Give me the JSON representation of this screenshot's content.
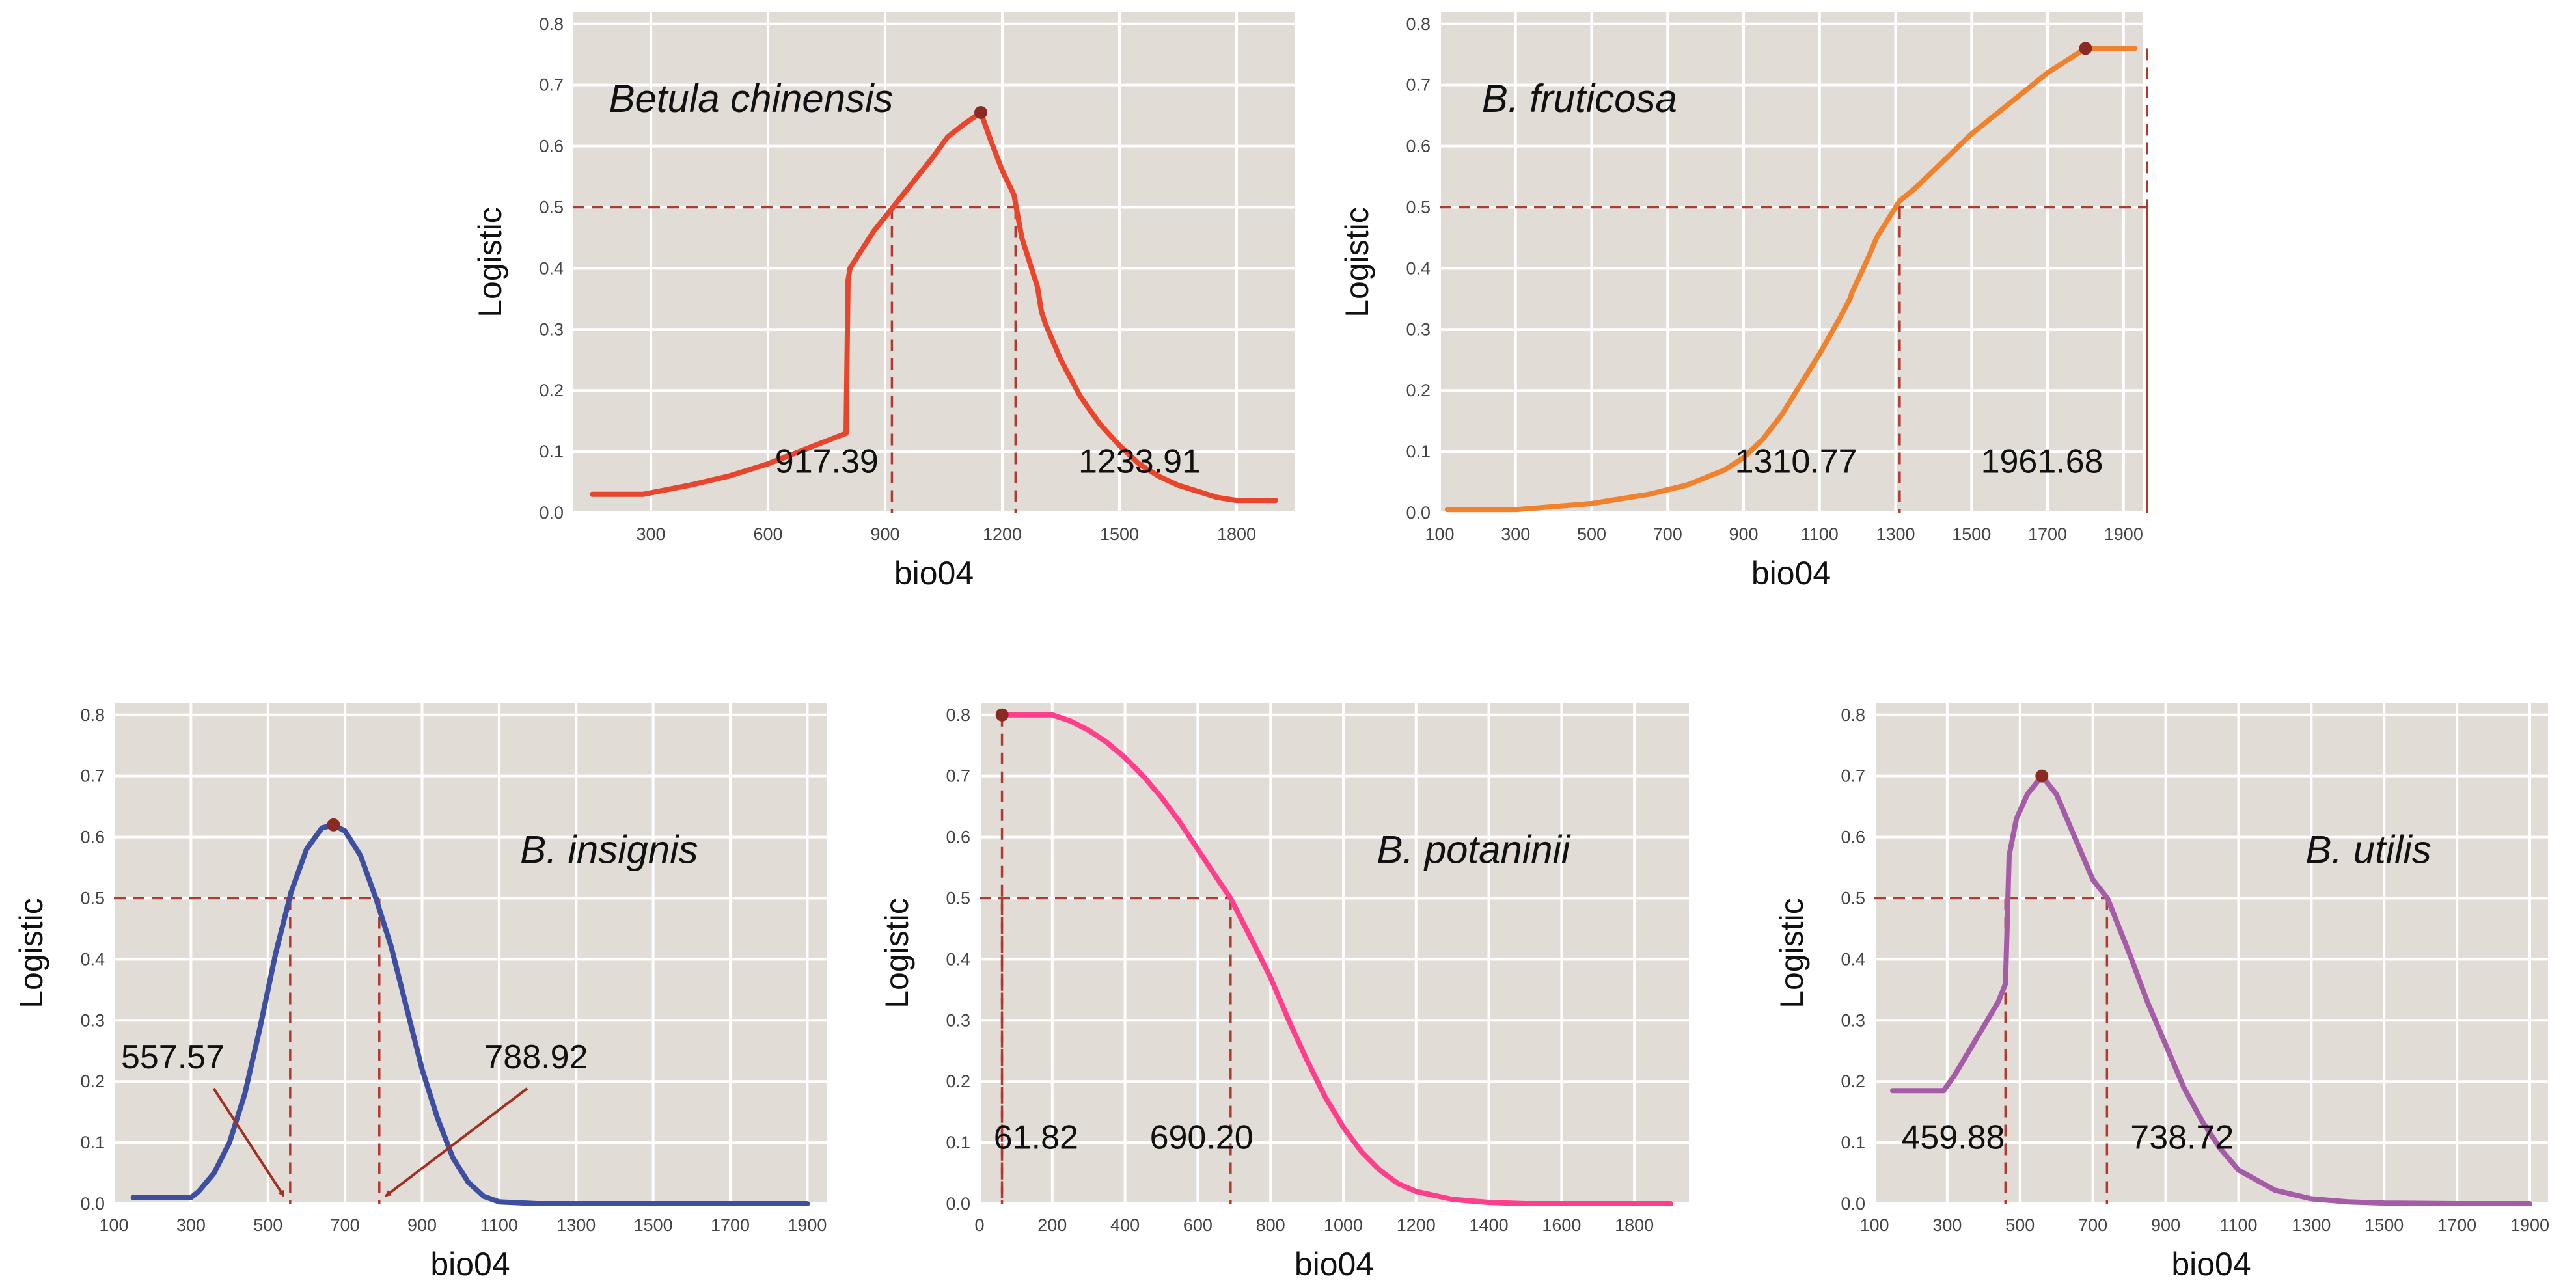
{
  "chart_data": [
    {
      "type": "line",
      "title": "Betula chinensis",
      "xlabel": "bio04",
      "ylabel": "Logistic",
      "color": "#e8452c",
      "xlim": [
        100,
        1950
      ],
      "ylim": [
        0,
        0.82
      ],
      "xticks": [
        300,
        600,
        900,
        1200,
        1500,
        1800
      ],
      "yticks": [
        0.0,
        0.1,
        0.2,
        0.3,
        0.4,
        0.5,
        0.6,
        0.7,
        0.8
      ],
      "threshold": 0.5,
      "x": [
        150,
        280,
        400,
        500,
        600,
        700,
        760,
        800,
        805,
        810,
        830,
        870,
        920,
        970,
        1020,
        1060,
        1100,
        1145,
        1170,
        1200,
        1230,
        1250,
        1270,
        1290,
        1300,
        1310,
        1350,
        1400,
        1450,
        1500,
        1550,
        1600,
        1650,
        1700,
        1750,
        1800,
        1850,
        1900
      ],
      "y": [
        0.03,
        0.03,
        0.045,
        0.06,
        0.08,
        0.105,
        0.12,
        0.13,
        0.38,
        0.4,
        0.42,
        0.46,
        0.5,
        0.54,
        0.58,
        0.615,
        0.635,
        0.655,
        0.61,
        0.56,
        0.52,
        0.45,
        0.41,
        0.37,
        0.33,
        0.31,
        0.25,
        0.19,
        0.145,
        0.11,
        0.08,
        0.06,
        0.045,
        0.035,
        0.025,
        0.02,
        0.02,
        0.02
      ],
      "peak": {
        "x": 1145,
        "y": 0.655
      },
      "cutoffs": [
        917.39,
        1233.91
      ],
      "annotations": [
        "917.39",
        "1233.91"
      ]
    },
    {
      "type": "line",
      "title": "B. fruticosa",
      "xlabel": "bio04",
      "ylabel": "Logistic",
      "color": "#f0822d",
      "xlim": [
        100,
        1950
      ],
      "ylim": [
        0,
        0.82
      ],
      "xticks": [
        100,
        300,
        500,
        700,
        900,
        1100,
        1300,
        1500,
        1700,
        1900
      ],
      "yticks": [
        0.0,
        0.1,
        0.2,
        0.3,
        0.4,
        0.5,
        0.6,
        0.7,
        0.8
      ],
      "threshold": 0.5,
      "x": [
        120,
        300,
        500,
        650,
        750,
        850,
        900,
        950,
        1000,
        1050,
        1100,
        1150,
        1180,
        1185,
        1200,
        1230,
        1250,
        1280,
        1310,
        1350,
        1400,
        1500,
        1600,
        1700,
        1800,
        1850,
        1900,
        1930
      ],
      "y": [
        0.005,
        0.005,
        0.015,
        0.03,
        0.045,
        0.07,
        0.09,
        0.12,
        0.16,
        0.21,
        0.26,
        0.315,
        0.35,
        0.36,
        0.38,
        0.42,
        0.45,
        0.48,
        0.51,
        0.53,
        0.56,
        0.62,
        0.67,
        0.72,
        0.76,
        0.76,
        0.76,
        0.76
      ],
      "peak": {
        "x": 1800,
        "y": 0.76
      },
      "cutoffs": [
        1310.77,
        1961.68
      ],
      "annotations": [
        "1310.77",
        "1961.68"
      ]
    },
    {
      "type": "line",
      "title": "B. insignis",
      "xlabel": "bio04",
      "ylabel": "Logistic",
      "color": "#3f4fa0",
      "xlim": [
        100,
        1950
      ],
      "ylim": [
        0,
        0.82
      ],
      "xticks": [
        100,
        300,
        500,
        700,
        900,
        1100,
        1300,
        1500,
        1700,
        1900
      ],
      "yticks": [
        0.0,
        0.1,
        0.2,
        0.3,
        0.4,
        0.5,
        0.6,
        0.7,
        0.8
      ],
      "threshold": 0.5,
      "x": [
        150,
        300,
        320,
        360,
        400,
        440,
        480,
        520,
        560,
        600,
        640,
        670,
        700,
        740,
        780,
        820,
        860,
        900,
        940,
        980,
        1020,
        1060,
        1100,
        1200,
        1400,
        1600,
        1800,
        1900
      ],
      "y": [
        0.01,
        0.01,
        0.02,
        0.05,
        0.1,
        0.18,
        0.29,
        0.41,
        0.51,
        0.58,
        0.615,
        0.62,
        0.61,
        0.57,
        0.5,
        0.42,
        0.32,
        0.22,
        0.14,
        0.075,
        0.035,
        0.012,
        0.003,
        0.0,
        0.0,
        0.0,
        0.0,
        0.0
      ],
      "peak": {
        "x": 670,
        "y": 0.62
      },
      "cutoffs": [
        557.57,
        788.92
      ],
      "annotations": [
        "557.57",
        "788.92"
      ]
    },
    {
      "type": "line",
      "title": "B. potaninii",
      "xlabel": "bio04",
      "ylabel": "Logistic",
      "color": "#ff3e8c",
      "xlim": [
        0,
        1950
      ],
      "ylim": [
        0,
        0.82
      ],
      "xticks": [
        0,
        200,
        400,
        600,
        800,
        1000,
        1200,
        1400,
        1600,
        1800
      ],
      "yticks": [
        0.0,
        0.1,
        0.2,
        0.3,
        0.4,
        0.5,
        0.6,
        0.7,
        0.8
      ],
      "threshold": 0.5,
      "x": [
        62,
        200,
        250,
        300,
        350,
        400,
        450,
        500,
        550,
        600,
        650,
        690,
        750,
        800,
        850,
        900,
        950,
        1000,
        1050,
        1100,
        1150,
        1200,
        1300,
        1400,
        1500,
        1600,
        1700,
        1800,
        1900
      ],
      "y": [
        0.8,
        0.8,
        0.79,
        0.775,
        0.755,
        0.73,
        0.7,
        0.665,
        0.625,
        0.58,
        0.535,
        0.5,
        0.43,
        0.37,
        0.3,
        0.235,
        0.175,
        0.125,
        0.085,
        0.055,
        0.033,
        0.02,
        0.007,
        0.002,
        0.0,
        0.0,
        0.0,
        0.0,
        0.0
      ],
      "peak": {
        "x": 62,
        "y": 0.8
      },
      "cutoffs": [
        61.82,
        690.2
      ],
      "annotations": [
        "61.82",
        "690.20"
      ]
    },
    {
      "type": "line",
      "title": "B. utilis",
      "xlabel": "bio04",
      "ylabel": "Logistic",
      "color": "#a45ca6",
      "xlim": [
        100,
        1950
      ],
      "ylim": [
        0,
        0.82
      ],
      "xticks": [
        100,
        300,
        500,
        700,
        900,
        1100,
        1300,
        1500,
        1700,
        1900
      ],
      "yticks": [
        0.0,
        0.1,
        0.2,
        0.3,
        0.4,
        0.5,
        0.6,
        0.7,
        0.8
      ],
      "threshold": 0.5,
      "x": [
        150,
        290,
        320,
        360,
        400,
        440,
        460,
        470,
        490,
        520,
        560,
        600,
        650,
        700,
        740,
        800,
        850,
        900,
        950,
        1000,
        1050,
        1100,
        1200,
        1300,
        1400,
        1500,
        1700,
        1900
      ],
      "y": [
        0.185,
        0.185,
        0.21,
        0.25,
        0.29,
        0.33,
        0.36,
        0.57,
        0.63,
        0.67,
        0.7,
        0.67,
        0.6,
        0.53,
        0.5,
        0.41,
        0.33,
        0.26,
        0.19,
        0.135,
        0.09,
        0.055,
        0.022,
        0.008,
        0.003,
        0.001,
        0.0,
        0.0
      ],
      "peak": {
        "x": 560,
        "y": 0.7
      },
      "cutoffs": [
        459.88,
        738.72
      ],
      "annotations": [
        "459.88",
        "738.72"
      ]
    }
  ]
}
